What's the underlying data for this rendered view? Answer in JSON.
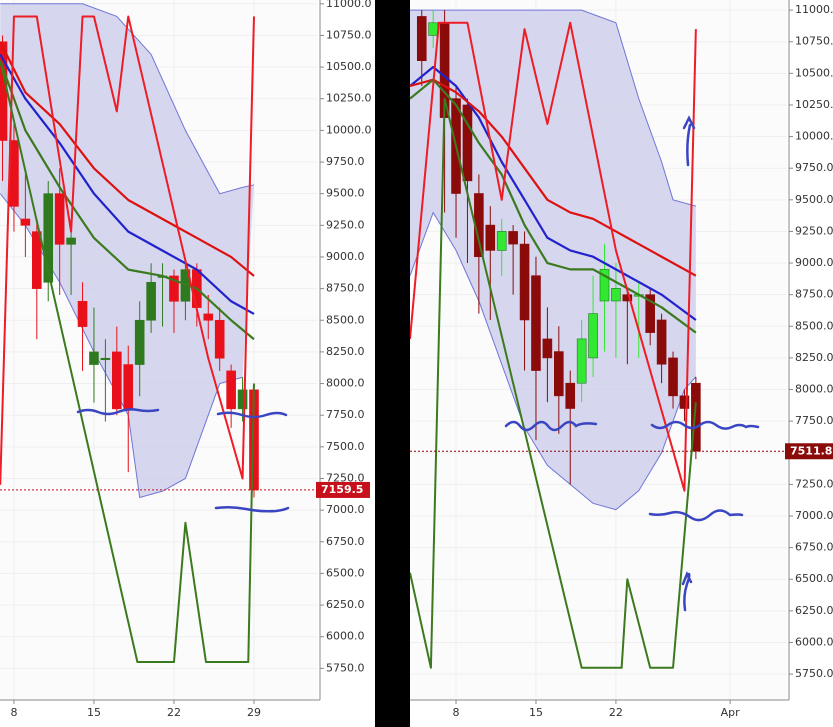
{
  "chart_data": [
    {
      "type": "candlestick",
      "x": [
        7,
        8,
        9,
        10,
        11,
        12,
        13,
        14,
        15,
        16,
        17,
        18,
        19,
        20,
        21,
        22,
        23,
        24,
        25,
        26,
        27,
        28,
        29
      ],
      "open": [
        10700,
        9920,
        9300,
        9200,
        8800,
        9500,
        9100,
        8650,
        8150,
        8200,
        8250,
        8150,
        8150,
        8500,
        8850,
        8850,
        8650,
        8900,
        8550,
        8500,
        8100,
        7800,
        7950
      ],
      "high": [
        10750,
        10050,
        9650,
        9300,
        9600,
        9700,
        9300,
        8800,
        8600,
        8350,
        8450,
        8300,
        8650,
        8950,
        8950,
        8900,
        8950,
        8950,
        8700,
        8600,
        8150,
        8050,
        8000
      ],
      "low": [
        9600,
        9200,
        9000,
        8350,
        8650,
        8700,
        8700,
        8100,
        7850,
        7700,
        7750,
        7300,
        7900,
        8400,
        8450,
        8400,
        8500,
        8450,
        8350,
        8100,
        7650,
        7700,
        7100
      ],
      "close": [
        9920,
        9400,
        9250,
        8750,
        9500,
        9100,
        9150,
        8450,
        8250,
        8200,
        7800,
        7800,
        8500,
        8800,
        8850,
        8650,
        8900,
        8600,
        8500,
        8200,
        7800,
        7950,
        7159.5
      ],
      "up_color": "#2f7a1f",
      "down_color": "#e8101a",
      "price_color": "#c8101a",
      "band": {
        "color": "#c9cbe9",
        "line_color": "#6f76d6",
        "upper": {
          "x": [
            6.8,
            10,
            14,
            17,
            20,
            23,
            26,
            28,
            29
          ],
          "values": [
            11000,
            11000,
            11000,
            10900,
            10600,
            10000,
            9500,
            9550,
            9570
          ]
        },
        "lower": {
          "x": [
            6.8,
            9,
            12,
            15,
            18,
            19,
            21,
            23,
            24,
            26,
            28
          ],
          "values": [
            9500,
            9250,
            8800,
            8250,
            7750,
            7100,
            7150,
            7250,
            7500,
            8000,
            8050
          ]
        }
      },
      "lines": [
        {
          "color": "#2222cc",
          "width": 2.2,
          "x": [
            6.8,
            9,
            12,
            15,
            18,
            21,
            24,
            27,
            29
          ],
          "values": [
            10600,
            10250,
            9900,
            9500,
            9200,
            9050,
            8900,
            8650,
            8550
          ]
        },
        {
          "color": "#dd1111",
          "width": 2.2,
          "x": [
            6.8,
            9,
            12,
            15,
            18,
            21,
            24,
            27,
            29
          ],
          "values": [
            10700,
            10300,
            10050,
            9700,
            9450,
            9300,
            9150,
            9000,
            8850
          ]
        },
        {
          "color": "#3b7a1e",
          "width": 2.2,
          "x": [
            6.8,
            9,
            12,
            15,
            18,
            21,
            24,
            27,
            29
          ],
          "values": [
            10550,
            10000,
            9550,
            9150,
            8900,
            8850,
            8750,
            8500,
            8350
          ]
        },
        {
          "color": "#ee1c25",
          "width": 2,
          "x": [
            6.8,
            8,
            10,
            13,
            14,
            15,
            17,
            18,
            25,
            28,
            29
          ],
          "values": [
            7200,
            10900,
            10900,
            9200,
            10900,
            10900,
            10150,
            10900,
            8200,
            7250,
            10900
          ]
        },
        {
          "color": "#3b7a1e",
          "width": 2,
          "x": [
            6.8,
            18.8,
            22,
            23,
            24.8,
            28.5,
            29
          ],
          "values": [
            10550,
            5800,
            5800,
            6900,
            5800,
            5800,
            8000
          ]
        }
      ],
      "xlim": [
        6.78,
        34.6
      ],
      "ylim": [
        5500,
        11030
      ],
      "xticks": [
        8,
        15,
        22,
        29
      ],
      "yticks": [
        {
          "value": 11000,
          "label": "11000.0"
        },
        {
          "value": 10750,
          "label": "10750.0"
        },
        {
          "value": 10500,
          "label": "10500.0"
        },
        {
          "value": 10250,
          "label": "10250.0"
        },
        {
          "value": 10000,
          "label": "10000.0"
        },
        {
          "value": 9750,
          "label": "9750.0"
        },
        {
          "value": 9500,
          "label": "9500.0"
        },
        {
          "value": 9250,
          "label": "9250.0"
        },
        {
          "value": 9000,
          "label": "9000.0"
        },
        {
          "value": 8750,
          "label": "8750.0"
        },
        {
          "value": 8500,
          "label": "8500.0"
        },
        {
          "value": 8250,
          "label": "8250.0"
        },
        {
          "value": 8000,
          "label": "8000.0"
        },
        {
          "value": 7750,
          "label": "7750.0"
        },
        {
          "value": 7500,
          "label": "7500.0"
        },
        {
          "value": 7250,
          "label": "7250.0"
        },
        {
          "value": 7000,
          "label": "7000.0"
        },
        {
          "value": 6750,
          "label": "6750.0"
        },
        {
          "value": 6500,
          "label": "6500.0"
        },
        {
          "value": 6250,
          "label": "6250.0"
        },
        {
          "value": 6000,
          "label": "6000.0"
        },
        {
          "value": 5750,
          "label": "5750.0"
        }
      ],
      "grid": true
    },
    {
      "type": "candlestick",
      "x": [
        5,
        6,
        7,
        8,
        9,
        10,
        11,
        12,
        13,
        14,
        15,
        16,
        17,
        18,
        19,
        20,
        21,
        22,
        23,
        24,
        25,
        26,
        27,
        28,
        29
      ],
      "open": [
        10950,
        10800,
        10900,
        10300,
        10250,
        9550,
        9300,
        9100,
        9250,
        9150,
        8900,
        8400,
        8300,
        8050,
        8050,
        8250,
        8700,
        8700,
        8750,
        8750,
        8750,
        8550,
        8250,
        7950,
        8050
      ],
      "high": [
        11000,
        11000,
        11000,
        10400,
        10300,
        9700,
        9450,
        9350,
        9300,
        9250,
        9050,
        8650,
        8500,
        8150,
        8550,
        8900,
        9150,
        9000,
        8800,
        8850,
        8800,
        8600,
        8300,
        8000,
        8100
      ],
      "low": [
        10400,
        10700,
        9400,
        9200,
        9000,
        8600,
        8550,
        8900,
        8750,
        8150,
        7600,
        7900,
        7650,
        7250,
        7900,
        8100,
        8300,
        8250,
        8200,
        8250,
        8350,
        8050,
        7850,
        7750,
        7450
      ],
      "close": [
        10600,
        10900,
        10150,
        9550,
        9650,
        9050,
        9100,
        9250,
        9150,
        8550,
        8150,
        8250,
        7950,
        7850,
        8400,
        8600,
        8950,
        8800,
        8700,
        8750,
        8450,
        8200,
        7950,
        7850,
        7511.8
      ],
      "up_color": "#33e833",
      "down_color": "#8b0a0a",
      "price_color": "#8b0a0a",
      "band": {
        "color": "#c9cbe9",
        "line_color": "#6f76d6",
        "upper": {
          "x": [
            3.97,
            15,
            19,
            22,
            24,
            26,
            27,
            29
          ],
          "values": [
            11000,
            11000,
            11000,
            10900,
            10300,
            9800,
            9500,
            9450
          ]
        },
        "lower": {
          "x": [
            3.97,
            6,
            8,
            10,
            12,
            14,
            16,
            18,
            20,
            22,
            24,
            26,
            28,
            29
          ],
          "values": [
            8900,
            9400,
            9100,
            8700,
            8200,
            7700,
            7400,
            7250,
            7100,
            7050,
            7200,
            7500,
            8000,
            8100
          ]
        }
      },
      "lines": [
        {
          "color": "#2222cc",
          "width": 2.2,
          "x": [
            3.97,
            6,
            8,
            10,
            12,
            14,
            16,
            18,
            20,
            22,
            24,
            26,
            29
          ],
          "values": [
            10400,
            10550,
            10400,
            10150,
            9800,
            9500,
            9200,
            9100,
            9050,
            8950,
            8850,
            8750,
            8550
          ]
        },
        {
          "color": "#dd1111",
          "width": 2.2,
          "x": [
            3.97,
            6,
            8,
            10,
            12,
            14,
            16,
            18,
            20,
            22,
            24,
            26,
            29
          ],
          "values": [
            10400,
            10450,
            10350,
            10200,
            10000,
            9750,
            9500,
            9400,
            9350,
            9250,
            9150,
            9050,
            8900
          ]
        },
        {
          "color": "#3b7a1e",
          "width": 2.2,
          "x": [
            3.97,
            6,
            8,
            10,
            12,
            14,
            16,
            18,
            20,
            22,
            24,
            26,
            29
          ],
          "values": [
            10300,
            10450,
            10250,
            9950,
            9700,
            9300,
            9000,
            8950,
            8950,
            8850,
            8750,
            8650,
            8450
          ]
        },
        {
          "color": "#ee1c25",
          "width": 2,
          "x": [
            3.97,
            6.5,
            9,
            12,
            14,
            16,
            18,
            22,
            28,
            29
          ],
          "values": [
            8400,
            10900,
            10900,
            9500,
            10850,
            10100,
            10900,
            9100,
            7200,
            10850
          ]
        },
        {
          "color": "#3b7a1e",
          "width": 2,
          "x": [
            3.97,
            5.8,
            7,
            19,
            22.5,
            23,
            25,
            27,
            29
          ],
          "values": [
            6550,
            5800,
            10300,
            5800,
            5800,
            6500,
            5800,
            5800,
            7900
          ]
        }
      ],
      "xlim": [
        3.97,
        36.98
      ],
      "ylim": [
        5545,
        11080
      ],
      "xticks": [
        8,
        15,
        22,
        {
          "value": 32,
          "label": "Apr"
        }
      ],
      "yticks": [
        {
          "value": 11000,
          "label": "11000.0"
        },
        {
          "value": 10750,
          "label": "10750.0"
        },
        {
          "value": 10500,
          "label": "10500.0"
        },
        {
          "value": 10250,
          "label": "10250.0"
        },
        {
          "value": 10000,
          "label": "10000.0"
        },
        {
          "value": 9750,
          "label": "9750.0"
        },
        {
          "value": 9500,
          "label": "9500.0"
        },
        {
          "value": 9250,
          "label": "9250.0"
        },
        {
          "value": 9000,
          "label": "9000.0"
        },
        {
          "value": 8750,
          "label": "8750.0"
        },
        {
          "value": 8500,
          "label": "8500.0"
        },
        {
          "value": 8250,
          "label": "8250.0"
        },
        {
          "value": 8000,
          "label": "8000.0"
        },
        {
          "value": 7750,
          "label": "7750.0"
        },
        {
          "value": 7500,
          "label": "7500.0"
        },
        {
          "value": 7250,
          "label": "7250.0"
        },
        {
          "value": 7000,
          "label": "7000.0"
        },
        {
          "value": 6750,
          "label": "6750.0"
        },
        {
          "value": 6500,
          "label": "6500.0"
        },
        {
          "value": 6250,
          "label": "6250.0"
        },
        {
          "value": 6000,
          "label": "6000.0"
        },
        {
          "value": 5750,
          "label": "5750.0"
        }
      ],
      "grid": true
    }
  ]
}
